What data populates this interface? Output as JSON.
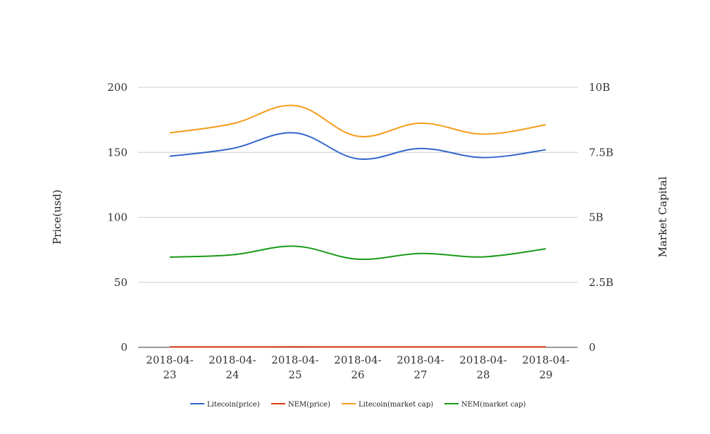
{
  "chart_data": {
    "type": "line",
    "categories": [
      "2018-04-23",
      "2018-04-24",
      "2018-04-25",
      "2018-04-26",
      "2018-04-27",
      "2018-04-28",
      "2018-04-29"
    ],
    "category_lines": [
      [
        "2018-04-",
        "23"
      ],
      [
        "2018-04-",
        "24"
      ],
      [
        "2018-04-",
        "25"
      ],
      [
        "2018-04-",
        "26"
      ],
      [
        "2018-04-",
        "27"
      ],
      [
        "2018-04-",
        "28"
      ],
      [
        "2018-04-",
        "29"
      ]
    ],
    "ylabel_left": "Price(usd)",
    "ylabel_right": "Market Capital",
    "ylim_left": [
      0,
      200
    ],
    "ylim_right": [
      0,
      10000000000
    ],
    "yticks_left": [
      "0",
      "50",
      "100",
      "150",
      "200"
    ],
    "yticks_right": [
      "0",
      "2.5B",
      "5B",
      "7.5B",
      "10B"
    ],
    "grid": true,
    "legend_position": "bottom",
    "series": [
      {
        "name": "Litecoin(price)",
        "axis": "left",
        "color": "#3366cc",
        "values": [
          147,
          153,
          165,
          145,
          153,
          146,
          152
        ]
      },
      {
        "name": "NEM(price)",
        "axis": "left",
        "color": "#dc3912",
        "values": [
          0.31,
          0.33,
          0.38,
          0.33,
          0.34,
          0.33,
          0.35
        ]
      },
      {
        "name": "Litecoin(market cap)",
        "axis": "right",
        "color": "#f59c1a",
        "values": [
          8250000000,
          8600000000,
          9300000000,
          8120000000,
          8620000000,
          8200000000,
          8560000000
        ]
      },
      {
        "name": "NEM(market cap)",
        "axis": "right",
        "color": "#189a18",
        "values": [
          3470000000,
          3560000000,
          3890000000,
          3390000000,
          3610000000,
          3480000000,
          3790000000
        ]
      }
    ]
  }
}
